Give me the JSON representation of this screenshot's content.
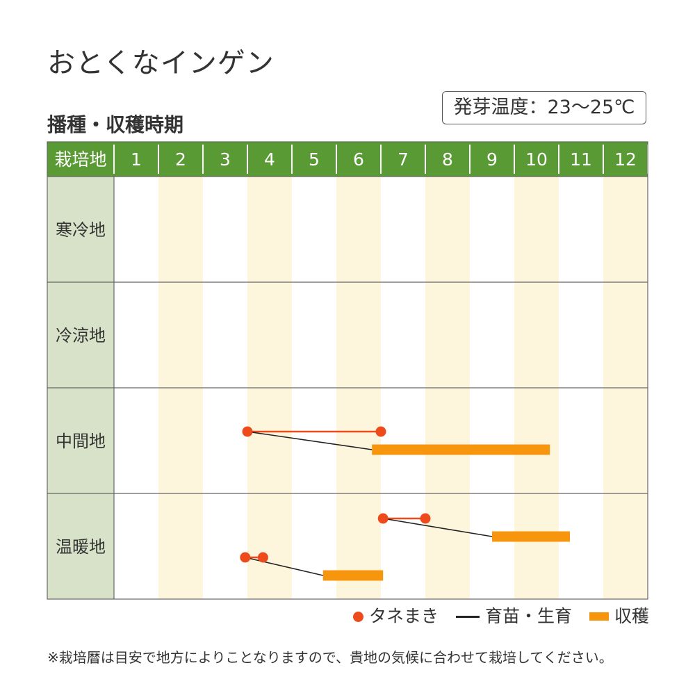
{
  "title": "おとくなインゲン",
  "subtitle": "播種・収穫時期",
  "germination_temp": "発芽温度：23～25℃",
  "legend": {
    "sowing": "タネまき",
    "growing": "育苗・生育",
    "harvest": "収穫"
  },
  "note": "※栽培暦は目安で地方によりことなりますので、貴地の気候に合わせて栽培してください。",
  "colors": {
    "header_bg": "#5a9a34",
    "region_bg": "#d8e2c8",
    "stripe": "#fdf5dc",
    "sowing": "#ee4b1c",
    "growing": "#222222",
    "harvest": "#f7950c"
  },
  "chart_data": {
    "type": "table",
    "header_label": "栽培地",
    "months": [
      "1",
      "2",
      "3",
      "4",
      "5",
      "6",
      "7",
      "8",
      "9",
      "10",
      "11",
      "12"
    ],
    "regions": [
      {
        "name": "寒冷地",
        "schedules": []
      },
      {
        "name": "冷涼地",
        "schedules": []
      },
      {
        "name": "中間地",
        "schedules": [
          {
            "sow_start": 4.0,
            "sow_end": 7.0,
            "growing_to": 6.8,
            "harvest_start": 6.8,
            "harvest_end": 10.8
          }
        ]
      },
      {
        "name": "温暖地",
        "schedules": [
          {
            "sow_start": 7.05,
            "sow_end": 8.0,
            "growing_to": 9.5,
            "harvest_start": 9.5,
            "harvest_end": 11.25
          },
          {
            "sow_start": 3.95,
            "sow_end": 4.35,
            "growing_to": 5.7,
            "harvest_start": 5.7,
            "harvest_end": 7.05
          }
        ]
      }
    ]
  }
}
